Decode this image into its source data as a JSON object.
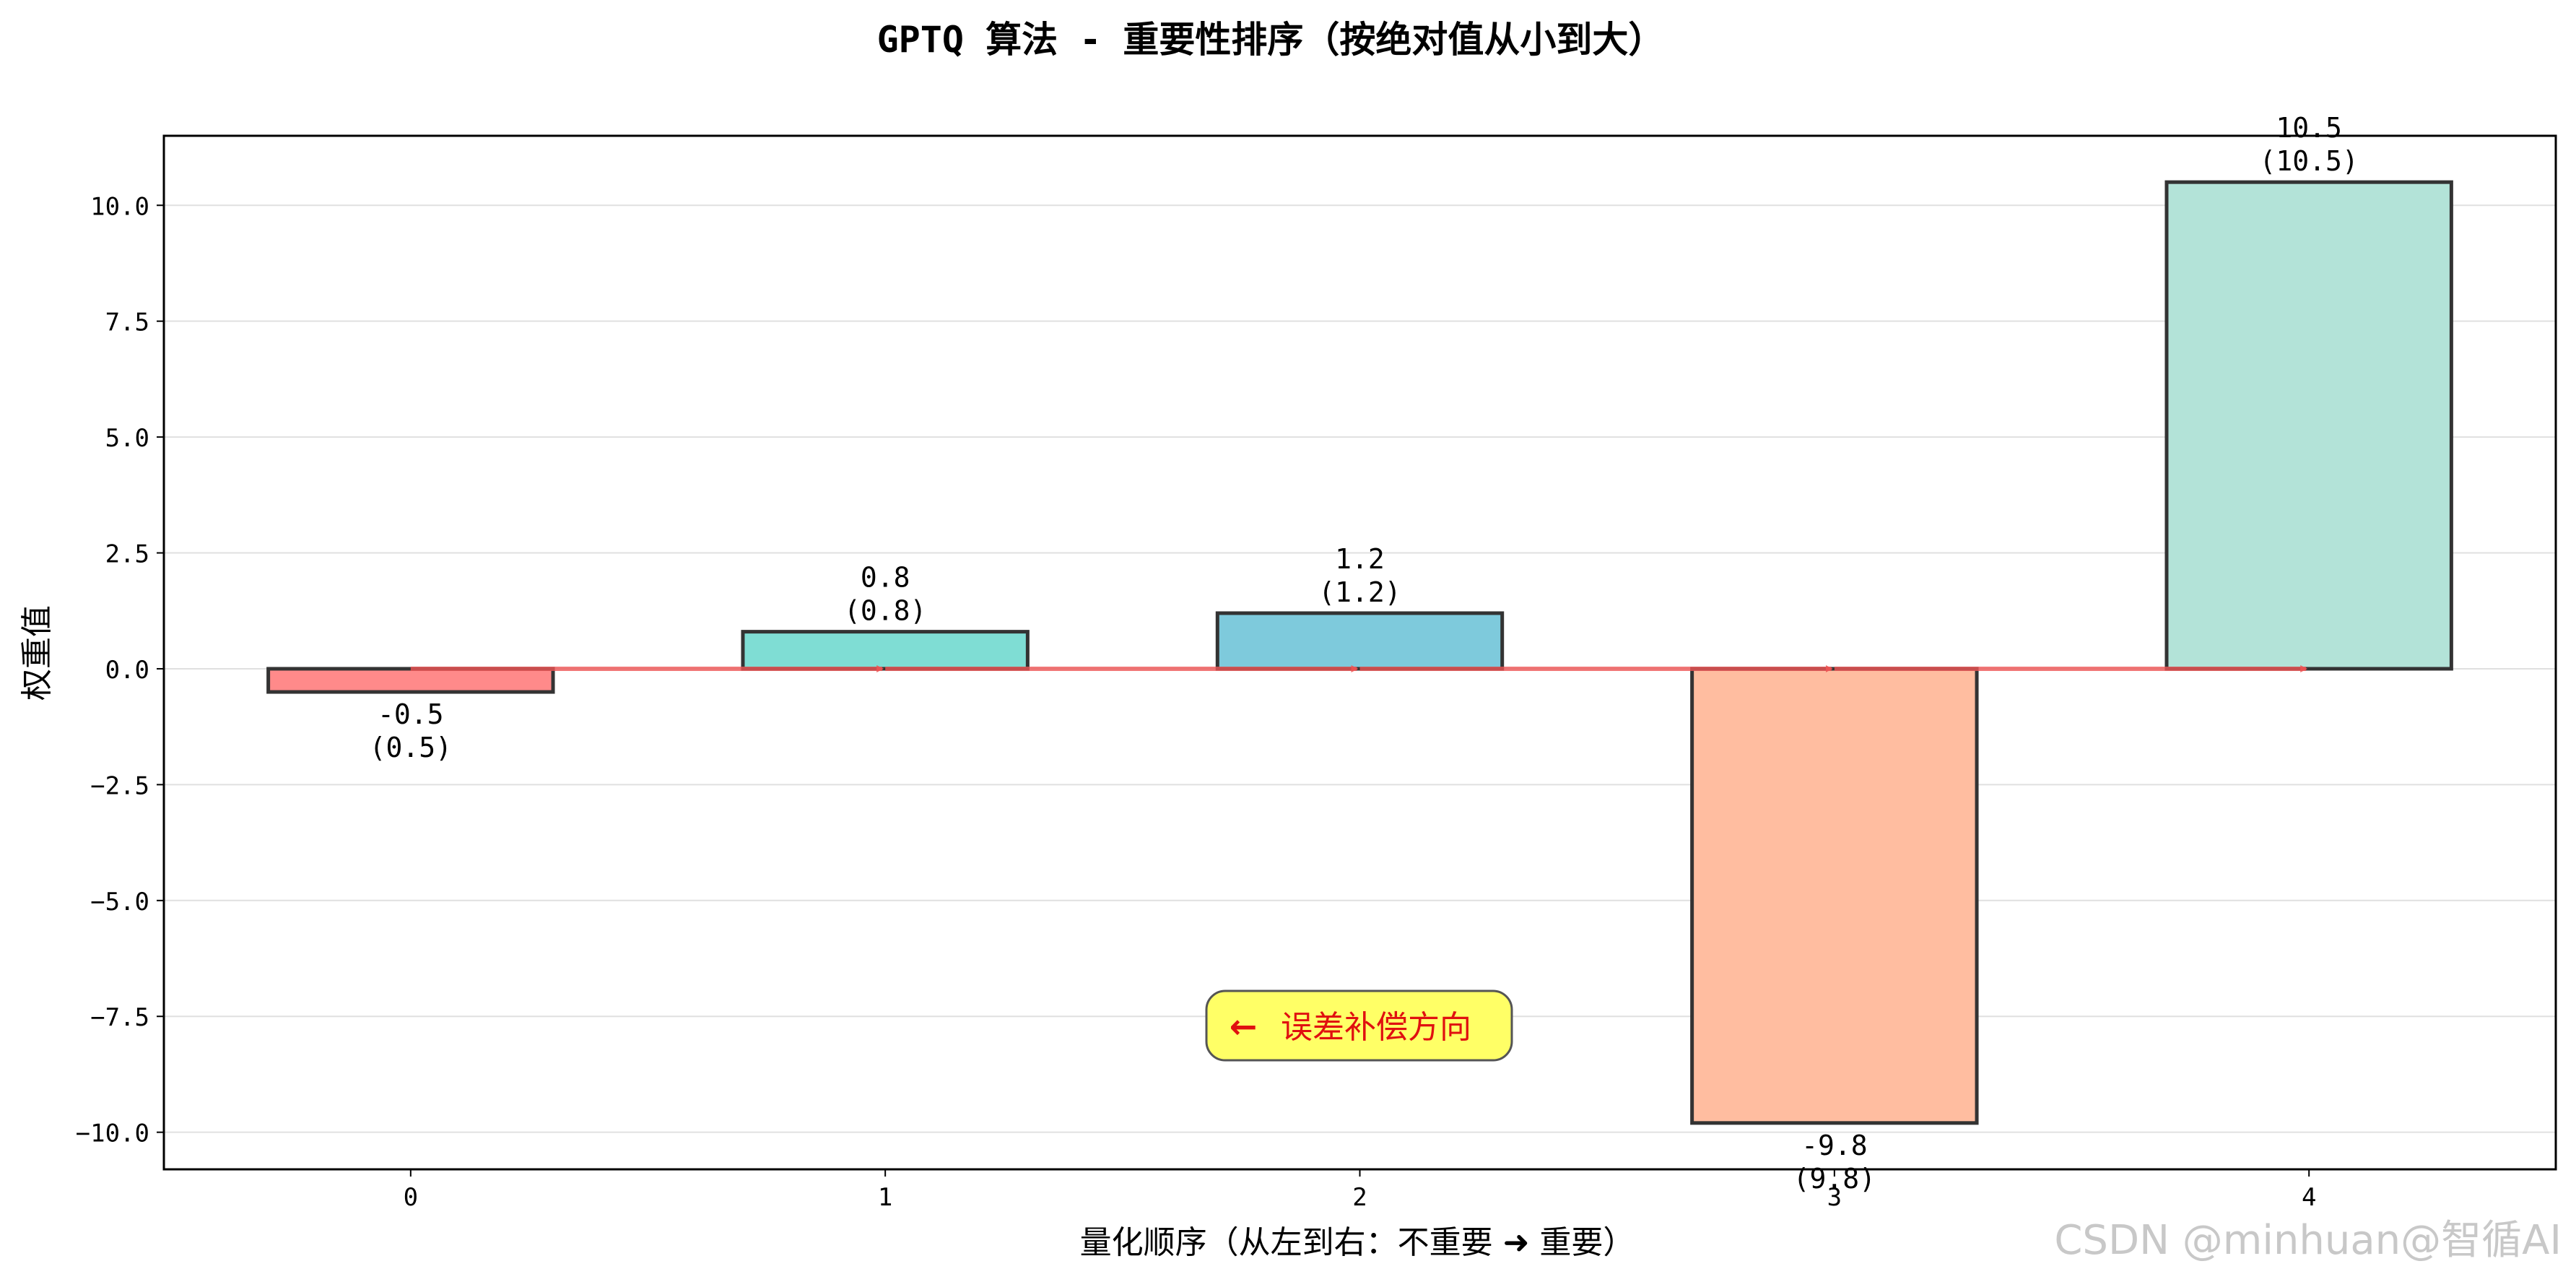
{
  "watermark": "CSDN @minhuan@智循AI",
  "colors": {
    "bars": [
      "#ff8a8a",
      "#7fddd4",
      "#7ecadc",
      "#ffbda0",
      "#b3e3d8"
    ],
    "arrow": "#ee5555",
    "annotation_bg": "#ffff66",
    "annotation_text": "#e01010",
    "axis": "#000000",
    "grid": "#e0e0e0"
  },
  "chart_data": {
    "type": "bar",
    "title": "GPTQ 算法 - 重要性排序（按绝对值从小到大）",
    "xlabel": "量化顺序（从左到右：不重要 ➜ 重要）",
    "ylabel": "权重值",
    "categories": [
      "0",
      "1",
      "2",
      "3",
      "4"
    ],
    "values": [
      -0.5,
      0.8,
      1.2,
      -9.8,
      10.5
    ],
    "value_labels": [
      "-0.5",
      "0.8",
      "1.2",
      "-9.8",
      "10.5"
    ],
    "abs_labels": [
      "(0.5)",
      "(0.8)",
      "(1.2)",
      "(9.8)",
      "(10.5)"
    ],
    "ylim": [
      -10.8,
      11.5
    ],
    "xlim": [
      -0.52,
      4.52
    ],
    "yticks": [
      10.0,
      7.5,
      5.0,
      2.5,
      0.0,
      -2.5,
      -5.0,
      -7.5,
      -10.0
    ],
    "ytick_labels": [
      "10.0",
      "7.5",
      "5.0",
      "2.5",
      "0.0",
      "−2.5",
      "−5.0",
      "−7.5",
      "−10.0"
    ],
    "grid": "y",
    "annotation": {
      "text": "误差补偿方向",
      "arrow_glyph": "←",
      "x": 2.0,
      "y": -7.8
    },
    "flow_arrows": [
      {
        "from": 0.0,
        "to": 1.0
      },
      {
        "from": 1.0,
        "to": 2.0
      },
      {
        "from": 2.0,
        "to": 3.0
      },
      {
        "from": 3.0,
        "to": 4.0
      }
    ]
  }
}
